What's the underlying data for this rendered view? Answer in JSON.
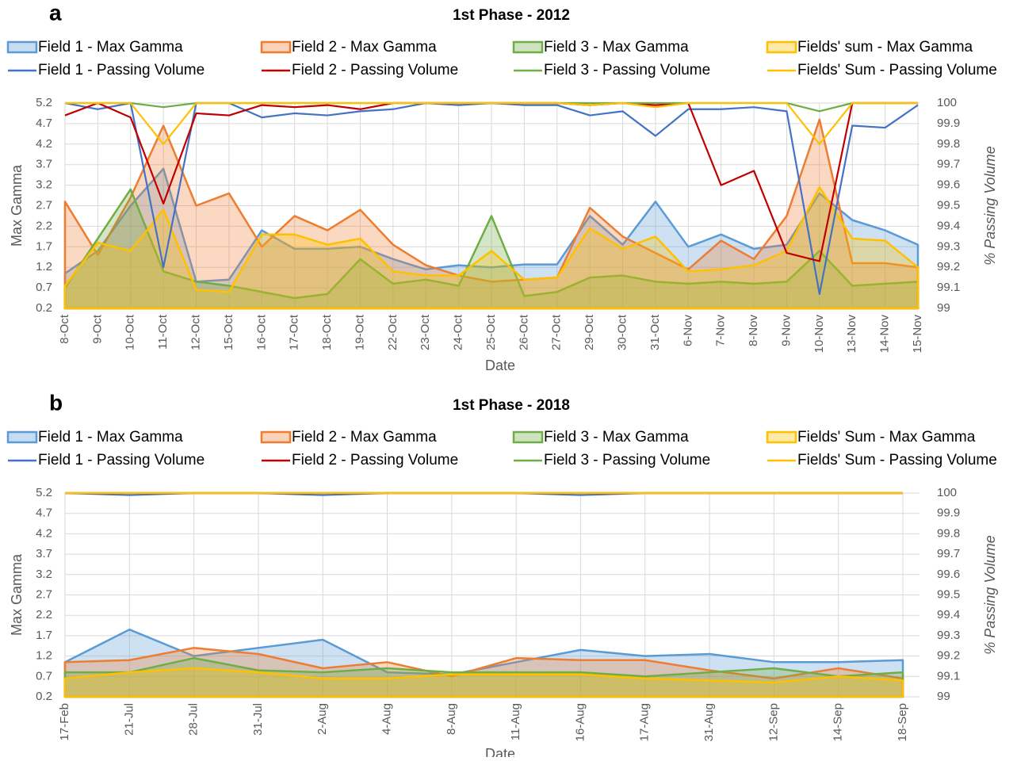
{
  "chart_data": [
    {
      "type": "area_line",
      "panel": "a",
      "title": "1st Phase - 2012",
      "xlabel": "Date",
      "ylabel": "Max Gamma",
      "y2label": "% Passing Volume",
      "grid": true,
      "categories": [
        "8-Oct",
        "9-Oct",
        "10-Oct",
        "11-Oct",
        "12-Oct",
        "15-Oct",
        "16-Oct",
        "17-Oct",
        "18-Oct",
        "19-Oct",
        "22-Oct",
        "23-Oct",
        "24-Oct",
        "25-Oct",
        "26-Oct",
        "27-Oct",
        "29-Oct",
        "30-Oct",
        "31-Oct",
        "6-Nov",
        "7-Nov",
        "8-Nov",
        "9-Nov",
        "10-Nov",
        "13-Nov",
        "14-Nov",
        "15-Nov"
      ],
      "ylim": [
        0.2,
        5.2
      ],
      "yticks": [
        0.2,
        0.7,
        1.2,
        1.7,
        2.2,
        2.7,
        3.2,
        3.7,
        4.2,
        4.7,
        5.2
      ],
      "y2lim": [
        99,
        100
      ],
      "y2ticks": [
        99,
        99.1,
        99.2,
        99.3,
        99.4,
        99.5,
        99.6,
        99.7,
        99.8,
        99.9,
        100
      ],
      "series": [
        {
          "name": "Field 1 - Max Gamma",
          "style": "area",
          "color": "#5b9bd5",
          "values": [
            1.05,
            1.6,
            2.7,
            3.6,
            0.85,
            0.9,
            2.1,
            1.65,
            1.65,
            1.7,
            1.4,
            1.15,
            1.25,
            1.2,
            1.27,
            1.27,
            2.45,
            1.75,
            2.8,
            1.7,
            2.0,
            1.65,
            1.75,
            3.0,
            2.35,
            2.1,
            1.75
          ]
        },
        {
          "name": "Field 2 - Max Gamma",
          "style": "area",
          "color": "#ed7d31",
          "values": [
            2.8,
            1.5,
            2.9,
            4.65,
            2.7,
            3.0,
            1.7,
            2.45,
            2.1,
            2.6,
            1.75,
            1.25,
            1.0,
            0.85,
            0.9,
            0.95,
            2.65,
            1.95,
            1.55,
            1.15,
            1.85,
            1.4,
            2.45,
            4.8,
            1.3,
            1.3,
            1.2
          ]
        },
        {
          "name": "Field 3 - Max Gamma",
          "style": "area",
          "color": "#70ad47",
          "values": [
            0.7,
            1.9,
            3.1,
            1.1,
            0.85,
            0.75,
            0.6,
            0.45,
            0.55,
            1.4,
            0.8,
            0.9,
            0.75,
            2.45,
            0.5,
            0.6,
            0.95,
            1.0,
            0.85,
            0.8,
            0.85,
            0.8,
            0.85,
            1.6,
            0.75,
            0.8,
            0.85
          ]
        },
        {
          "name": "Fields' sum - Max Gamma",
          "style": "area",
          "color": "#ffc000",
          "values": [
            0.75,
            1.8,
            1.6,
            2.6,
            0.65,
            0.6,
            2.0,
            2.0,
            1.75,
            1.9,
            1.1,
            1.0,
            1.0,
            1.6,
            0.9,
            0.95,
            2.15,
            1.65,
            1.95,
            1.1,
            1.15,
            1.25,
            1.6,
            3.15,
            1.9,
            1.85,
            1.2
          ]
        },
        {
          "name": "Field 1 - Passing Volume",
          "style": "line",
          "axis": "y2",
          "color": "#4472c4",
          "values": [
            100,
            99.97,
            100,
            99.2,
            100,
            100,
            99.93,
            99.95,
            99.94,
            99.96,
            99.97,
            100,
            99.99,
            100,
            99.99,
            99.99,
            99.94,
            99.96,
            99.84,
            99.97,
            99.97,
            99.98,
            99.96,
            99.07,
            99.89,
            99.88,
            99.99
          ]
        },
        {
          "name": "Field 2 - Passing Volume",
          "style": "line",
          "axis": "y2",
          "color": "#c00000",
          "values": [
            99.94,
            100,
            99.93,
            99.51,
            99.95,
            99.94,
            99.99,
            99.98,
            99.99,
            99.97,
            100,
            100,
            100,
            100,
            100,
            100,
            99.99,
            100,
            99.99,
            100,
            99.6,
            99.67,
            99.27,
            99.23,
            100,
            100,
            100
          ]
        },
        {
          "name": "Field 3 - Passing Volume",
          "style": "line",
          "axis": "y2",
          "color": "#70ad47",
          "values": [
            100,
            100,
            100,
            99.98,
            100,
            100,
            100,
            100,
            100,
            100,
            100,
            100,
            100,
            100,
            100,
            100,
            100,
            100,
            100,
            100,
            100,
            100,
            100,
            99.96,
            100,
            100,
            100
          ]
        },
        {
          "name": "Fields' Sum - Passing Volume",
          "style": "line",
          "axis": "y2",
          "color": "#ffc000",
          "values": [
            100,
            100,
            100,
            99.8,
            100,
            100,
            100,
            100,
            100,
            100,
            100,
            100,
            100,
            100,
            100,
            100,
            99.99,
            100,
            99.98,
            100,
            100,
            100,
            100,
            99.8,
            100,
            100,
            100
          ]
        }
      ]
    },
    {
      "type": "area_line",
      "panel": "b",
      "title": "1st Phase - 2018",
      "xlabel": "Date",
      "ylabel": "Max Gamma",
      "y2label": "% Passing Volume",
      "grid": true,
      "categories": [
        "17-Feb",
        "21-Jul",
        "28-Jul",
        "31-Jul",
        "2-Aug",
        "4-Aug",
        "8-Aug",
        "11-Aug",
        "16-Aug",
        "17-Aug",
        "31-Aug",
        "12-Sep",
        "14-Sep",
        "18-Sep"
      ],
      "ylim": [
        0.2,
        5.2
      ],
      "yticks": [
        0.2,
        0.7,
        1.2,
        1.7,
        2.2,
        2.7,
        3.2,
        3.7,
        4.2,
        4.7,
        5.2
      ],
      "y2lim": [
        99,
        100
      ],
      "y2ticks": [
        99,
        99.1,
        99.2,
        99.3,
        99.4,
        99.5,
        99.6,
        99.7,
        99.8,
        99.9,
        100
      ],
      "series": [
        {
          "name": "Field 1 - Max Gamma",
          "style": "area",
          "color": "#5b9bd5",
          "values": [
            1.05,
            1.85,
            1.2,
            1.4,
            1.6,
            0.8,
            0.75,
            1.05,
            1.35,
            1.2,
            1.25,
            1.05,
            1.05,
            1.1
          ]
        },
        {
          "name": "Field 2 - Max Gamma",
          "style": "area",
          "color": "#ed7d31",
          "values": [
            1.05,
            1.1,
            1.4,
            1.25,
            0.9,
            1.05,
            0.7,
            1.15,
            1.1,
            1.1,
            0.85,
            0.65,
            0.9,
            0.65
          ]
        },
        {
          "name": "Field 3 - Max Gamma",
          "style": "area",
          "color": "#70ad47",
          "values": [
            0.8,
            0.8,
            1.15,
            0.85,
            0.8,
            0.9,
            0.8,
            0.8,
            0.8,
            0.7,
            0.8,
            0.9,
            0.7,
            0.8
          ]
        },
        {
          "name": "Fields' Sum - Max Gamma",
          "style": "area",
          "color": "#ffc000",
          "values": [
            0.65,
            0.8,
            0.9,
            0.8,
            0.65,
            0.65,
            0.75,
            0.75,
            0.75,
            0.65,
            0.6,
            0.55,
            0.7,
            0.6
          ]
        },
        {
          "name": "Field 1 - Passing Volume",
          "style": "line",
          "axis": "y2",
          "color": "#4472c4",
          "values": [
            100,
            99.99,
            100,
            100,
            99.99,
            100,
            100,
            100,
            99.99,
            100,
            100,
            100,
            100,
            100
          ]
        },
        {
          "name": "Field 2 - Passing Volume",
          "style": "line",
          "axis": "y2",
          "color": "#c00000",
          "values": [
            100,
            100,
            100,
            100,
            100,
            100,
            100,
            100,
            100,
            100,
            100,
            100,
            100,
            100
          ]
        },
        {
          "name": "Field 3 - Passing Volume",
          "style": "line",
          "axis": "y2",
          "color": "#70ad47",
          "values": [
            100,
            100,
            100,
            100,
            100,
            100,
            100,
            100,
            100,
            100,
            100,
            100,
            100,
            100
          ]
        },
        {
          "name": "Fields' Sum - Passing Volume",
          "style": "line",
          "axis": "y2",
          "color": "#ffc000",
          "values": [
            100,
            100,
            100,
            100,
            100,
            100,
            100,
            100,
            100,
            100,
            100,
            100,
            100,
            100
          ]
        }
      ]
    }
  ]
}
